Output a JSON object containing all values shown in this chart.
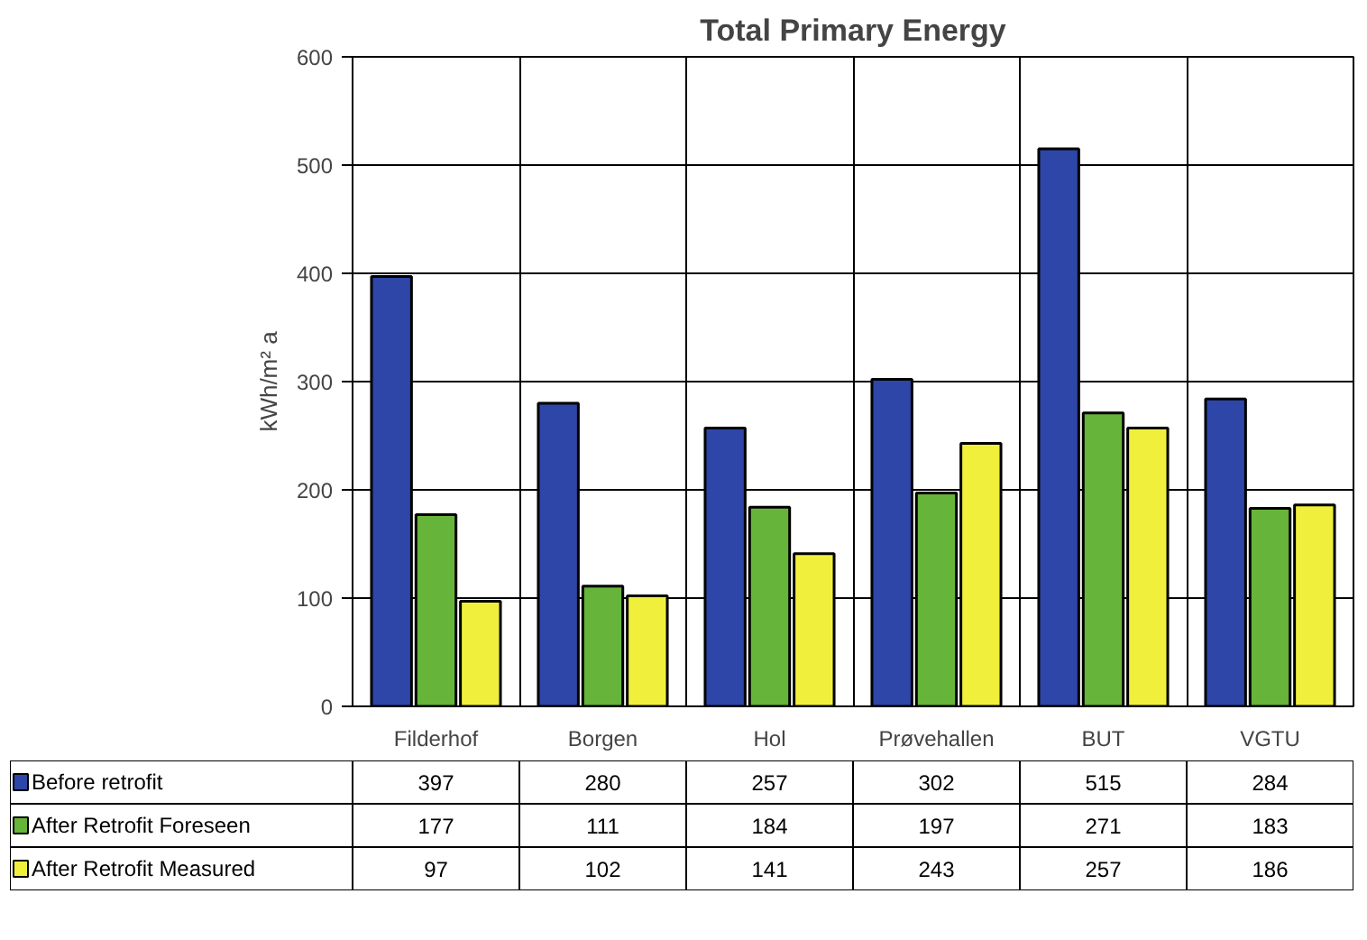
{
  "chart_data": {
    "type": "bar",
    "title": "Total Primary Energy",
    "ylabel": "kWh/m² a",
    "categories": [
      "Filderhof",
      "Borgen",
      "Hol",
      "Prøvehallen",
      "BUT",
      "VGTU"
    ],
    "series": [
      {
        "name": "Before retrofit",
        "color": "#2e46a8",
        "values": [
          397,
          280,
          257,
          302,
          515,
          284
        ]
      },
      {
        "name": "After Retrofit Foreseen",
        "color": "#66b43a",
        "values": [
          177,
          111,
          184,
          197,
          271,
          183
        ]
      },
      {
        "name": "After Retrofit Measured",
        "color": "#f0f03c",
        "values": [
          97,
          102,
          141,
          243,
          257,
          186
        ]
      }
    ],
    "ylim": [
      0,
      600
    ],
    "yticks": [
      0,
      100,
      200,
      300,
      400,
      500,
      600
    ],
    "grid": true,
    "legend": "bottom",
    "data_labels": true
  }
}
